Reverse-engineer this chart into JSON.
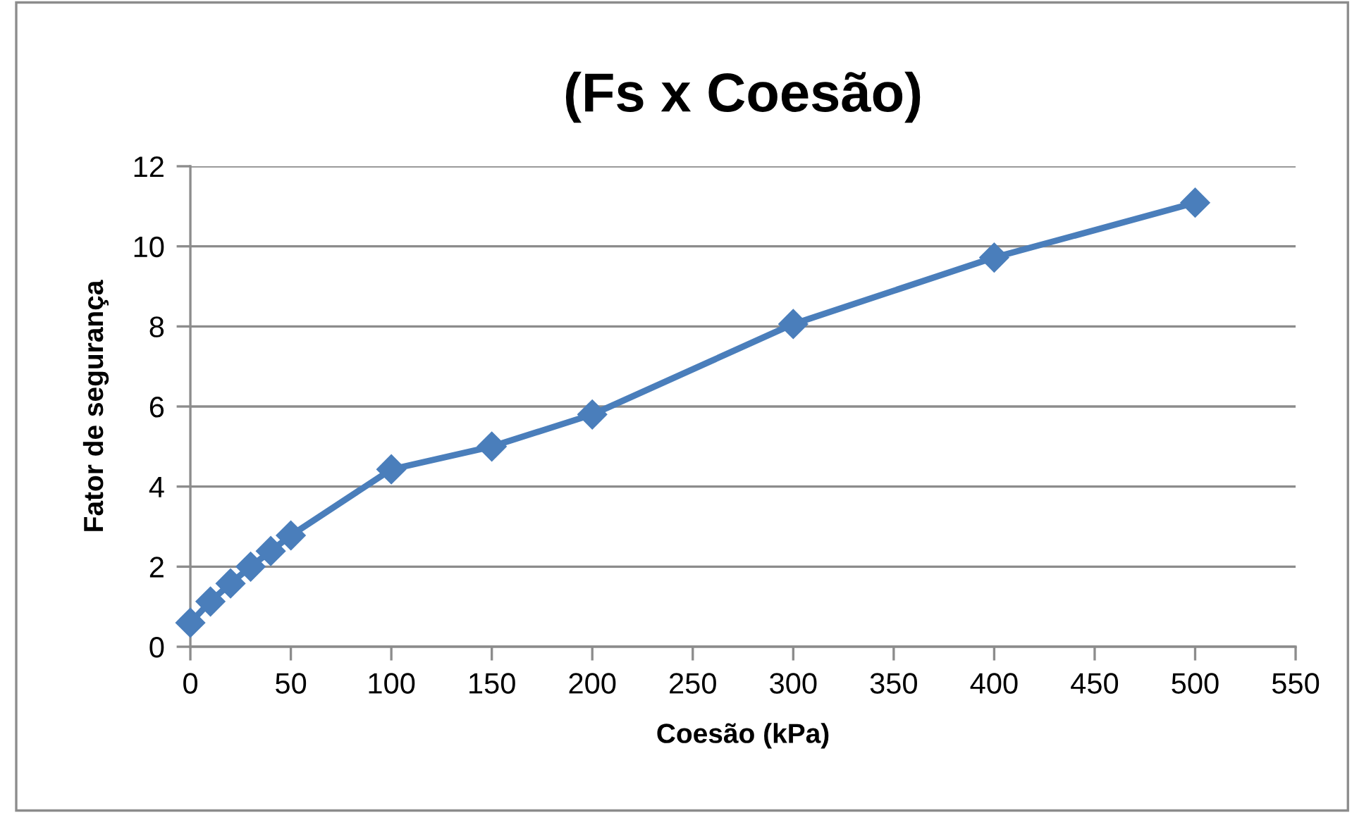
{
  "chart_data": {
    "type": "line",
    "title": "(Fs x Coesão)",
    "xlabel": "Coesão (kPa)",
    "ylabel": "Fator de segurança",
    "x": [
      0,
      10,
      20,
      30,
      40,
      50,
      100,
      150,
      200,
      300,
      400,
      500
    ],
    "series": [
      {
        "color": "#4a7ebb",
        "values": [
          0.6,
          1.13,
          1.58,
          2.0,
          2.39,
          2.78,
          4.43,
          5.0,
          5.8,
          8.06,
          9.72,
          11.09
        ]
      }
    ],
    "xlim": [
      0,
      550
    ],
    "xticks": [
      0,
      50,
      100,
      150,
      200,
      250,
      300,
      350,
      400,
      450,
      500,
      550
    ],
    "ylim": [
      0,
      12
    ],
    "yticks": [
      0,
      2,
      4,
      6,
      8,
      10,
      12
    ],
    "grid": "y",
    "marker": "diamond",
    "line_style": "solid"
  }
}
